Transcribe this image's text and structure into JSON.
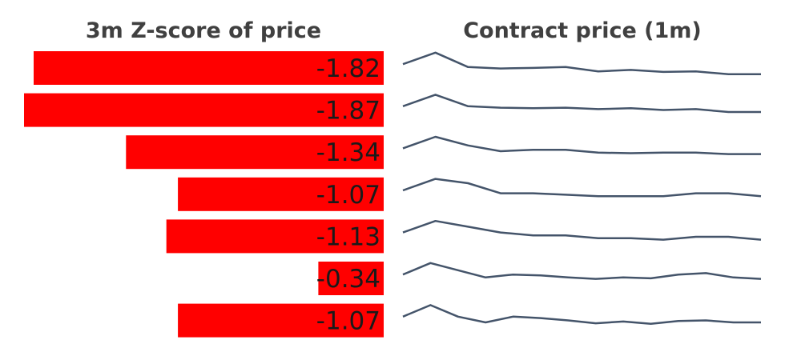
{
  "chart_data": [
    {
      "type": "bar",
      "orientation": "horizontal",
      "title": "3m Z-score of price",
      "values": [
        -1.82,
        -1.87,
        -1.34,
        -1.07,
        -1.13,
        -0.34,
        -1.07
      ],
      "labels": [
        "-1.82",
        "-1.87",
        "-1.34",
        "-1.07",
        "-1.13",
        "-0.34",
        "-1.07"
      ],
      "bar_color": "#ff0000",
      "xlim": [
        -1.87,
        0
      ]
    },
    {
      "type": "line",
      "title": "Contract price (1m)",
      "line_color": "#44546a",
      "series": [
        {
          "values": [
            55,
            95,
            45,
            40,
            42,
            45,
            30,
            35,
            28,
            30,
            20,
            20
          ]
        },
        {
          "values": [
            55,
            95,
            55,
            50,
            48,
            50,
            45,
            48,
            42,
            45,
            35,
            35
          ]
        },
        {
          "values": [
            55,
            95,
            65,
            45,
            50,
            50,
            40,
            38,
            40,
            40,
            35,
            35
          ]
        },
        {
          "values": [
            55,
            95,
            80,
            45,
            45,
            40,
            35,
            35,
            35,
            45,
            45,
            35
          ]
        },
        {
          "values": [
            55,
            95,
            75,
            55,
            45,
            45,
            35,
            35,
            30,
            40,
            40,
            30
          ]
        },
        {
          "values": [
            55,
            95,
            70,
            45,
            55,
            52,
            45,
            40,
            45,
            42,
            55,
            60,
            45,
            40
          ]
        },
        {
          "values": [
            55,
            95,
            55,
            35,
            55,
            50,
            42,
            32,
            38,
            30,
            40,
            42,
            35,
            35
          ]
        }
      ]
    }
  ]
}
